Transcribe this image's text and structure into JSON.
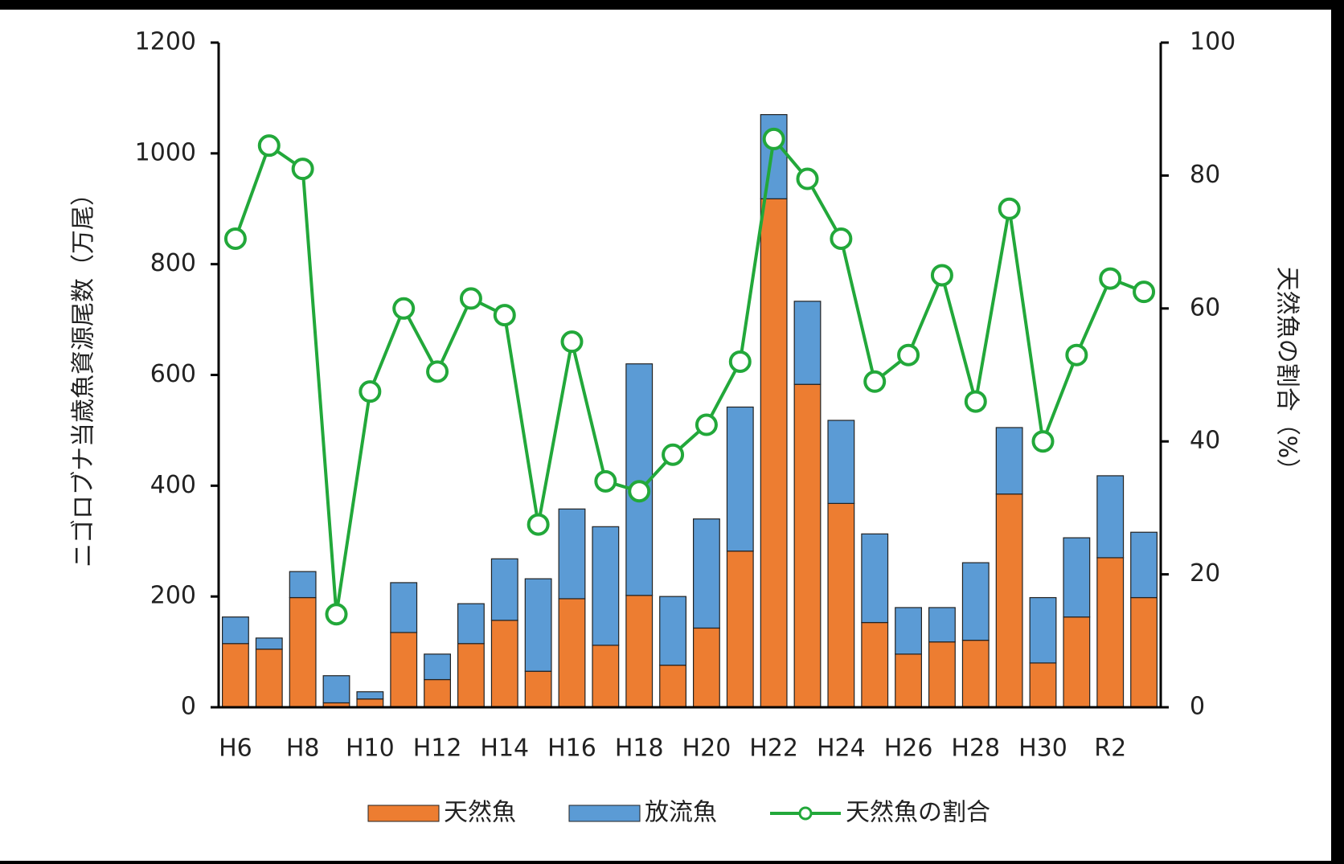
{
  "chart_data": {
    "type": "bar",
    "stacked": true,
    "y_axis_label": "ニゴロブナ当歳魚資源尾数（万尾）",
    "y2_axis_label": "天然魚の割合（%）",
    "categories": [
      "H6",
      null,
      "H8",
      null,
      "H10",
      null,
      "H12",
      null,
      "H14",
      null,
      "H16",
      null,
      "H18",
      null,
      "H20",
      null,
      "H22",
      null,
      "H24",
      null,
      "H26",
      null,
      "H28",
      null,
      "H30",
      null,
      "R2",
      null
    ],
    "series": [
      {
        "name": "天然魚",
        "type": "bar",
        "color": "#ed7d31",
        "values": [
          115,
          105,
          198,
          8,
          15,
          135,
          50,
          115,
          157,
          65,
          196,
          112,
          202,
          76,
          143,
          282,
          918,
          583,
          368,
          153,
          96,
          118,
          121,
          385,
          80,
          163,
          270,
          198
        ]
      },
      {
        "name": "放流魚",
        "type": "bar",
        "color": "#5b9bd5",
        "values": [
          48,
          20,
          47,
          49,
          13,
          90,
          46,
          72,
          111,
          167,
          162,
          214,
          418,
          124,
          197,
          260,
          152,
          150,
          150,
          160,
          84,
          62,
          140,
          120,
          118,
          143,
          148,
          118
        ]
      },
      {
        "name": "天然魚の割合",
        "type": "line",
        "axis": "y2",
        "color": "#22a83a",
        "values": [
          70.5,
          84.5,
          81,
          14,
          47.5,
          60,
          50.5,
          61.5,
          59,
          27.5,
          55,
          34,
          32.5,
          38,
          42.5,
          52,
          85.5,
          79.5,
          70.5,
          49,
          53,
          65,
          46,
          75,
          40,
          53,
          64.5,
          62.5
        ]
      }
    ],
    "ylim": [
      0,
      1200
    ],
    "yticks": [
      0,
      200,
      400,
      600,
      800,
      1000,
      1200
    ],
    "y2lim": [
      0,
      100
    ],
    "y2ticks": [
      0,
      20,
      40,
      60,
      80,
      100
    ],
    "legend": "bottom"
  }
}
